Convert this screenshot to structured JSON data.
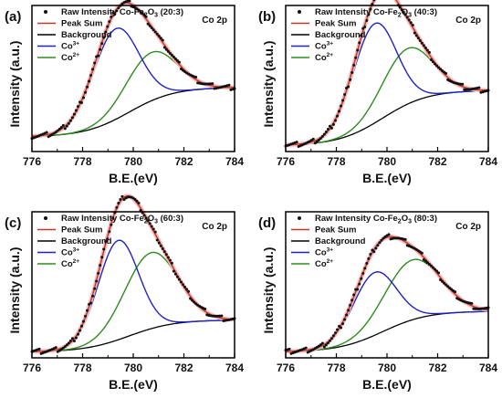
{
  "chart_data": [
    {
      "type": "line",
      "panel_label": "(a)",
      "core_level": "Co 2p",
      "xlabel": "B.E.(eV)",
      "ylabel": "Intensity (a.u.)",
      "xlim": [
        776,
        784
      ],
      "xticks": [
        776,
        778,
        780,
        782,
        784
      ],
      "legend": {
        "raw": {
          "prefix": "Raw Intensity Co-Fe",
          "sub1": "2",
          "mid": "O",
          "sub2": "3",
          "suffix": " (20:3)"
        },
        "peak_sum": "Peak Sum",
        "background": "Background",
        "co3": {
          "base": "Co",
          "sup": "3+"
        },
        "co2": {
          "base": "Co",
          "sup": "2+"
        }
      },
      "curves": {
        "bg_start": 0.1,
        "bg_end": 0.44,
        "peak1": {
          "center": 779.3,
          "height": 0.62,
          "width": 0.9
        },
        "peak2": {
          "center": 780.7,
          "height": 0.33,
          "width": 1.0
        }
      }
    },
    {
      "type": "line",
      "panel_label": "(b)",
      "core_level": "Co 2p",
      "xlabel": "B.E.(eV)",
      "ylabel": "Intensity (a.u.)",
      "xlim": [
        776,
        784
      ],
      "xticks": [
        776,
        778,
        780,
        782,
        784
      ],
      "legend": {
        "raw": {
          "prefix": "Raw Intensity Co-Fe",
          "sub1": "2",
          "mid": "O",
          "sub2": "3",
          "suffix": " (40:3)"
        },
        "peak_sum": "Peak Sum",
        "background": "Background",
        "co3": {
          "base": "Co",
          "sup": "3+"
        },
        "co2": {
          "base": "Co",
          "sup": "2+"
        }
      },
      "curves": {
        "bg_start": 0.04,
        "bg_end": 0.42,
        "peak1": {
          "center": 779.5,
          "height": 0.68,
          "width": 0.85
        },
        "peak2": {
          "center": 780.8,
          "height": 0.38,
          "width": 1.0
        }
      }
    },
    {
      "type": "line",
      "panel_label": "(c)",
      "core_level": "Co 2p",
      "xlabel": "B.E.(eV)",
      "ylabel": "Intensity (a.u.)",
      "xlim": [
        776,
        784
      ],
      "xticks": [
        776,
        778,
        780,
        782,
        784
      ],
      "legend": {
        "raw": {
          "prefix": "Raw Intensity Co-Fe",
          "sub1": "2",
          "mid": "O",
          "sub2": "3",
          "suffix": " (60:3)"
        },
        "peak_sum": "Peak Sum",
        "background": "Background",
        "co3": {
          "base": "Co",
          "sup": "3+"
        },
        "co2": {
          "base": "Co",
          "sup": "2+"
        }
      },
      "curves": {
        "bg_start": 0.04,
        "bg_end": 0.26,
        "peak1": {
          "center": 779.4,
          "height": 0.68,
          "width": 0.8
        },
        "peak2": {
          "center": 780.7,
          "height": 0.52,
          "width": 1.05
        }
      }
    },
    {
      "type": "line",
      "panel_label": "(d)",
      "core_level": "Co 2p",
      "xlabel": "B.E.(eV)",
      "ylabel": "Intensity (a.u.)",
      "xlim": [
        776,
        784
      ],
      "xticks": [
        776,
        778,
        780,
        782,
        784
      ],
      "legend": {
        "raw": {
          "prefix": "Raw Intensity Co-Fe",
          "sub1": "2",
          "mid": "O",
          "sub2": "3",
          "suffix": " (80:3)"
        },
        "peak_sum": "Peak Sum",
        "background": "Background",
        "co3": {
          "base": "Co",
          "sup": "3+"
        },
        "co2": {
          "base": "Co",
          "sup": "2+"
        }
      },
      "curves": {
        "bg_start": 0.04,
        "bg_end": 0.32,
        "peak1": {
          "center": 779.5,
          "height": 0.43,
          "width": 0.85
        },
        "peak2": {
          "center": 781.0,
          "height": 0.41,
          "width": 1.1
        }
      }
    }
  ],
  "colors": {
    "raw": "#111111",
    "peak_sum": "#c0392b",
    "peak_sum_halo": "#f4b6b6",
    "background": "#000000",
    "co3": "#1f22c8",
    "co2": "#2e8b1f"
  }
}
